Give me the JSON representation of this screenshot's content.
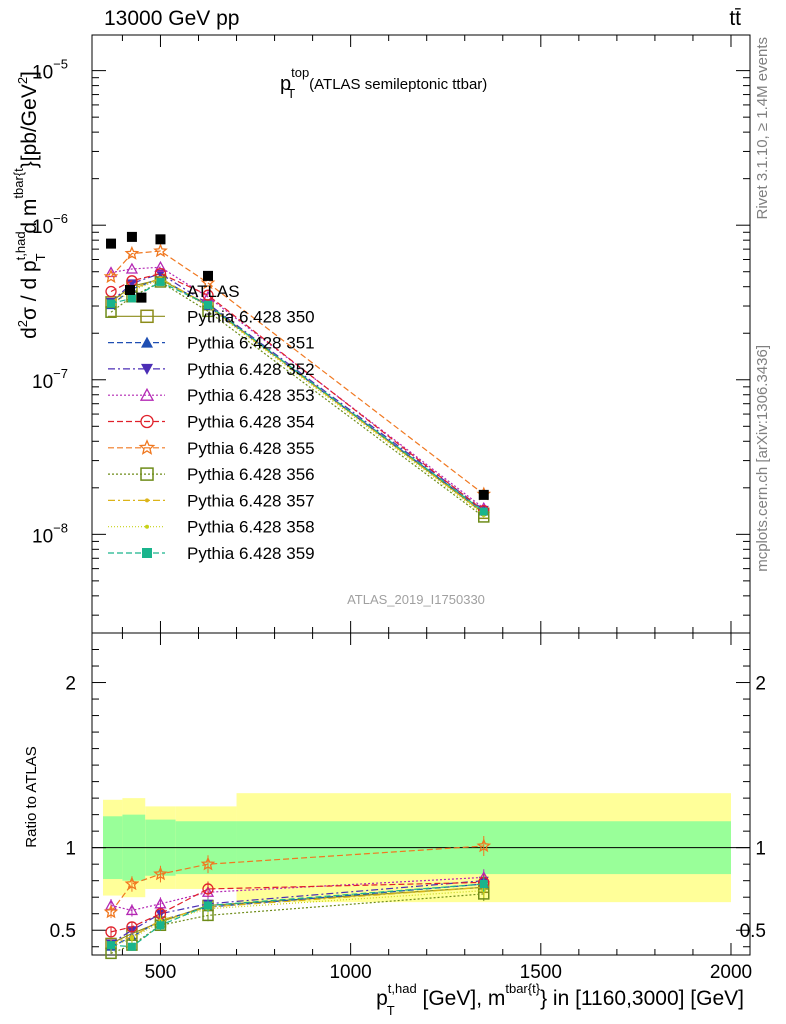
{
  "header": {
    "energy_label": "13000 GeV pp",
    "process_label": "tt̄"
  },
  "side_labels": {
    "rivet": "Rivet 3.1.10, ≥ 1.4M events",
    "mcplots": "mcplots.cern.ch [arXiv:1306.3436]"
  },
  "chart_data": {
    "type": "line",
    "title_main": "p",
    "title_sup": "top",
    "title_sub": "T",
    "title_rest": "(ATLAS semileptonic ttbar)",
    "analysis_id": "ATLAS_2019_I1750330",
    "x_axis": {
      "range": [
        320,
        2050
      ],
      "ticks": [
        500,
        1000,
        1500,
        2000
      ],
      "label_p": "p",
      "label_sub": "T",
      "label_sup": "t,had",
      "label_mid": " [GeV], m",
      "label_sup2": "tbar{t}",
      "label_end": "} in [1160,3000] [GeV]"
    },
    "top_y_axis": {
      "scale": "log",
      "range": [
        2.3e-09,
        1.7e-05
      ],
      "major_ticks": [
        {
          "value": 1e-08,
          "base": "10",
          "exp": "−8"
        },
        {
          "value": 1e-07,
          "base": "10",
          "exp": "−7"
        },
        {
          "value": 1e-06,
          "base": "10",
          "exp": "−6"
        },
        {
          "value": 1e-05,
          "base": "10",
          "exp": "−5"
        }
      ],
      "label": "d²σ / d p_T^{t,had} d m^{tbar{t}}}[pb/GeV²]"
    },
    "ratio_y_axis": {
      "range": [
        0.35,
        2.3
      ],
      "ticks": [
        0.5,
        1,
        2
      ],
      "tick_labels": [
        "0.5",
        "1",
        "2"
      ],
      "label": "Ratio to ATLAS"
    },
    "bins": [
      {
        "lo": 320,
        "hi": 400,
        "inner": 0.19,
        "outer": 0.29
      },
      {
        "lo": 400,
        "hi": 460,
        "inner": 0.2,
        "outer": 0.3
      },
      {
        "lo": 460,
        "hi": 540,
        "inner": 0.17,
        "outer": 0.25
      },
      {
        "lo": 540,
        "hi": 700,
        "inner": 0.16,
        "outer": 0.25
      },
      {
        "lo": 700,
        "hi": 2000,
        "inner": 0.16,
        "outer": 0.33
      }
    ],
    "x": [
      370,
      425,
      500,
      625,
      1350
    ],
    "data": {
      "name": "ATLAS",
      "values": [
        7.6e-07,
        8.4e-07,
        8.1e-07,
        4.7e-07,
        1.8e-08
      ],
      "extra_point": {
        "x": 450,
        "y": 3.4e-07
      }
    },
    "series": [
      {
        "name": "Pythia 6.428 350",
        "color": "#8c8c19",
        "marker": "open-square",
        "dash": "solid",
        "ratio": [
          0.42,
          0.48,
          0.55,
          0.65,
          0.76
        ]
      },
      {
        "name": "Pythia 6.428 351",
        "color": "#1f4fb3",
        "marker": "filled-triangle-up",
        "dash": "6,3",
        "ratio": [
          0.4,
          0.46,
          0.56,
          0.64,
          0.78
        ]
      },
      {
        "name": "Pythia 6.428 352",
        "color": "#4b2db5",
        "marker": "filled-triangle-down",
        "dash": "7,3,2,3",
        "ratio": [
          0.42,
          0.5,
          0.6,
          0.66,
          0.8
        ]
      },
      {
        "name": "Pythia 6.428 353",
        "color": "#b428b4",
        "marker": "open-triangle-up",
        "dash": "2,2",
        "ratio": [
          0.65,
          0.62,
          0.66,
          0.73,
          0.82
        ]
      },
      {
        "name": "Pythia 6.428 354",
        "color": "#e0202a",
        "marker": "open-circle",
        "dash": "6,3",
        "ratio": [
          0.49,
          0.52,
          0.6,
          0.75,
          0.79
        ]
      },
      {
        "name": "Pythia 6.428 355",
        "color": "#f07820",
        "marker": "open-star",
        "dash": "6,3",
        "ratio": [
          0.61,
          0.78,
          0.84,
          0.9,
          1.01
        ]
      },
      {
        "name": "Pythia 6.428 356",
        "color": "#6e8c19",
        "marker": "open-square",
        "dash": "2,2",
        "ratio": [
          0.36,
          0.41,
          0.53,
          0.59,
          0.72
        ]
      },
      {
        "name": "Pythia 6.428 357",
        "color": "#dcb419",
        "marker": "small-dot",
        "dash": "7,3,2,3",
        "ratio": [
          0.42,
          0.46,
          0.56,
          0.64,
          0.76
        ]
      },
      {
        "name": "Pythia 6.428 358",
        "color": "#c8d219",
        "marker": "small-dot",
        "dash": "1,2",
        "ratio": [
          0.4,
          0.45,
          0.55,
          0.63,
          0.74
        ]
      },
      {
        "name": "Pythia 6.428 359",
        "color": "#19b48c",
        "marker": "filled-square",
        "dash": "6,3",
        "ratio": [
          0.41,
          0.4,
          0.53,
          0.65,
          0.78
        ]
      }
    ],
    "colors": {
      "inner_band": "#99ff99",
      "outer_band": "#ffff99",
      "data": "#000000"
    }
  }
}
